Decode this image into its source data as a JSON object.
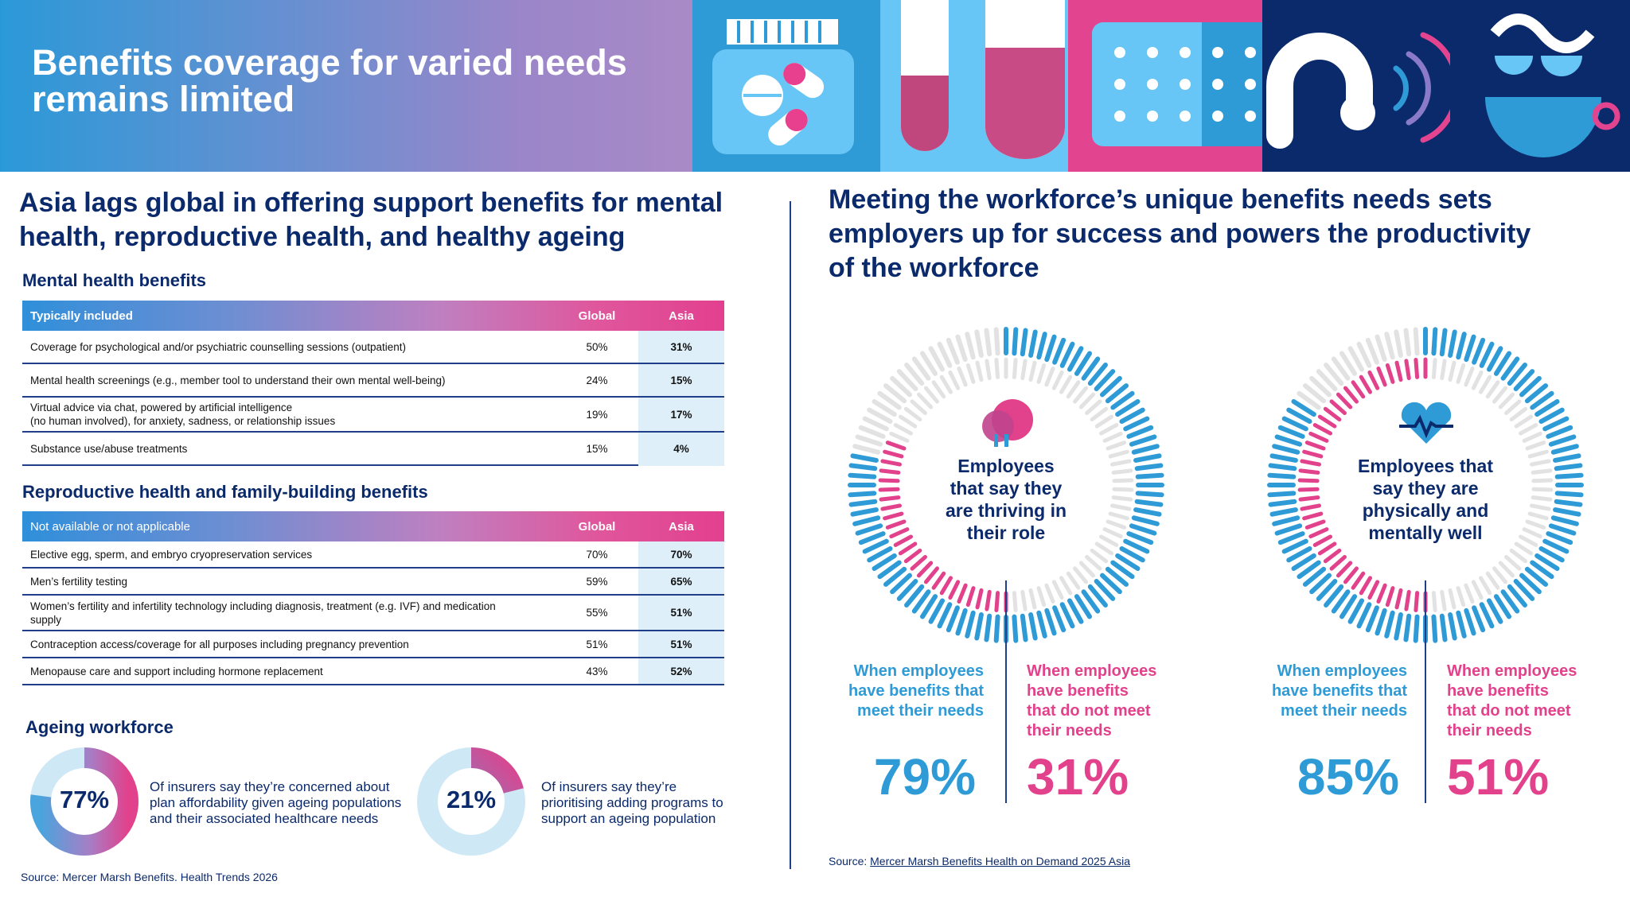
{
  "banner": {
    "title": "Benefits coverage for varied needs remains limited"
  },
  "left": {
    "heading": "Asia lags global in offering support benefits for mental health, reproductive health, and healthy ageing",
    "mental": {
      "title": "Mental health benefits",
      "header": {
        "label": "Typically included",
        "global": "Global",
        "asia": "Asia"
      },
      "rows": [
        {
          "label": "Coverage for psychological and/or psychiatric counselling sessions (outpatient)",
          "global": "50%",
          "asia": "31%"
        },
        {
          "label": "Mental health screenings (e.g., member tool to understand their own mental well-being)",
          "global": "24%",
          "asia": "15%"
        },
        {
          "label": "Virtual advice via chat, powered by artificial intelligence",
          "label2": "(no human involved), for anxiety, sadness, or relationship issues",
          "global": "19%",
          "asia": "17%"
        },
        {
          "label": "Substance use/abuse treatments",
          "global": "15%",
          "asia": "4%"
        }
      ]
    },
    "repro": {
      "title": "Reproductive health and family-building benefits",
      "header": {
        "label": "Not available or not applicable",
        "global": "Global",
        "asia": "Asia"
      },
      "rows": [
        {
          "label": "Elective egg, sperm, and embryo cryopreservation services",
          "global": "70%",
          "asia": "70%"
        },
        {
          "label": "Men’s fertility testing",
          "global": "59%",
          "asia": "65%"
        },
        {
          "label": "Women’s fertility and infertility technology including diagnosis, treatment (e.g. IVF) and medication",
          "label2": "supply",
          "global": "55%",
          "asia": "51%"
        },
        {
          "label": "Contraception access/coverage for all purposes including pregnancy prevention",
          "global": "51%",
          "asia": "51%"
        },
        {
          "label": "Menopause care and support including hormone replacement",
          "global": "43%",
          "asia": "52%"
        }
      ]
    },
    "ageing": {
      "title": "Ageing workforce",
      "items": [
        {
          "value": "77%",
          "fraction": 0.77,
          "text1": "Of insurers say they’re concerned about",
          "text2": "plan affordability given ageing populations",
          "text3": "and their associated healthcare needs"
        },
        {
          "value": "21%",
          "fraction": 0.21,
          "text1": "Of insurers say they’re",
          "text2": "prioritising adding programs to",
          "text3": "support an ageing population"
        }
      ]
    },
    "source": "Source: Mercer Marsh Benefits. Health Trends 2026"
  },
  "right": {
    "heading_line1": "Meeting the workforce’s unique benefits needs sets",
    "heading_line2": "employers up for success and powers the productivity",
    "heading_line3": "of the workforce",
    "panels": [
      {
        "label1": "Employees",
        "label2": "that say they",
        "label3": "are thriving in",
        "label4": "their role",
        "icon": "people-icon",
        "meet_label1": "When employees",
        "meet_label2": "have benefits that",
        "meet_label3": "meet their needs",
        "notmeet_label1": "When employees",
        "notmeet_label2": "have benefits",
        "notmeet_label3": "that do not meet",
        "notmeet_label4": "their needs",
        "meet_value": "79%",
        "notmeet_value": "31%"
      },
      {
        "label1": "Employees that",
        "label2": "say they are",
        "label3": "physically and",
        "label4": "mentally well",
        "icon": "heartbeat-icon",
        "meet_label1": "When employees",
        "meet_label2": "have benefits that",
        "meet_label3": "meet their needs",
        "notmeet_label1": "When employees",
        "notmeet_label2": "have benefits",
        "notmeet_label3": "that do not meet",
        "notmeet_label4": "their needs",
        "meet_value": "85%",
        "notmeet_value": "51%"
      }
    ],
    "source_prefix": "Source: ",
    "source_link": "Mercer Marsh Benefits Health on Demand 2025 Asia"
  },
  "colors": {
    "navy": "#0b2a6b",
    "blue": "#2e9bd7",
    "pink": "#e2418c",
    "lightblue": "#dfeffa",
    "grey": "#e2e2e2"
  },
  "chart_data": [
    {
      "type": "table",
      "title": "Mental health benefits",
      "columns": [
        "Typically included",
        "Global",
        "Asia"
      ],
      "rows": [
        [
          "Coverage for psychological and/or psychiatric counselling sessions (outpatient)",
          50,
          31
        ],
        [
          "Mental health screenings (e.g., member tool to understand their own mental well-being)",
          24,
          15
        ],
        [
          "Virtual advice via chat, powered by artificial intelligence (no human involved), for anxiety, sadness, or relationship issues",
          19,
          17
        ],
        [
          "Substance use/abuse treatments",
          15,
          4
        ]
      ]
    },
    {
      "type": "table",
      "title": "Reproductive health and family-building benefits",
      "columns": [
        "Not available or not applicable",
        "Global",
        "Asia"
      ],
      "rows": [
        [
          "Elective egg, sperm, and embryo cryopreservation services",
          70,
          70
        ],
        [
          "Men’s fertility testing",
          59,
          65
        ],
        [
          "Women’s fertility and infertility technology including diagnosis, treatment (e.g. IVF) and medication supply",
          55,
          51
        ],
        [
          "Contraception access/coverage for all purposes including pregnancy prevention",
          51,
          51
        ],
        [
          "Menopause care and support including hormone replacement",
          43,
          52
        ]
      ]
    },
    {
      "type": "pie",
      "values": [
        77,
        23
      ]
    },
    {
      "type": "pie",
      "values": [
        21,
        79
      ]
    },
    {
      "type": "pie",
      "categories": [
        "When employees have benefits that meet their needs",
        "When employees have benefits that do not meet their needs"
      ],
      "values": [
        79,
        31
      ]
    },
    {
      "type": "pie",
      "categories": [
        "When employees have benefits that meet their needs",
        "When employees have benefits that do not meet their needs"
      ],
      "values": [
        85,
        51
      ]
    }
  ]
}
